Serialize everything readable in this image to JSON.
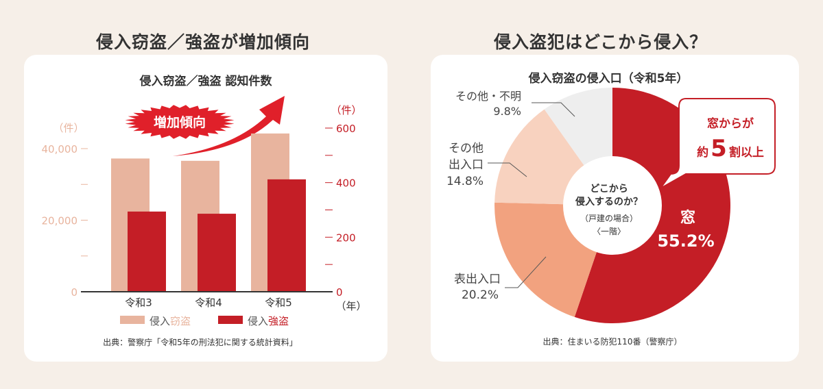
{
  "left": {
    "heading": "侵入窃盗／強盗が増加傾向",
    "source": "出典：警察庁「令和5年の刑法犯に関する統計資料」",
    "badge": "増加傾向"
  },
  "right": {
    "heading": "侵入盗犯はどこから侵入？",
    "source": "出典：住まいる防犯110番（警察庁）",
    "center": [
      "どこから",
      "侵入するのか？",
      "（戸建の場合）",
      "〈一階〉"
    ],
    "callout": {
      "line1": "窓からが",
      "pre": "約",
      "num": "5",
      "post": "割以上"
    }
  },
  "chart_data": [
    {
      "type": "bar",
      "title": "侵入窃盗／強盗 認知件数",
      "categories": [
        "令和3",
        "令和4",
        "令和5"
      ],
      "xlabel": "（年）",
      "ylabel_left": "（件）",
      "ylabel_right": "（件）",
      "ylim_left": [
        0,
        40000
      ],
      "yticks_left": [
        "0",
        "20,000",
        "40,000"
      ],
      "ylim_right": [
        0,
        600
      ],
      "yticks_right": [
        "0",
        "200",
        "400",
        "600"
      ],
      "series": [
        {
          "name": "侵入窃盗",
          "axis": "left",
          "color": "#e8b49e",
          "values": [
            37240,
            36588,
            44228
          ]
        },
        {
          "name": "侵入強盗",
          "axis": "right",
          "color": "#c41e26",
          "values": [
            294,
            286,
            412
          ]
        }
      ],
      "legend": [
        {
          "prefix": "侵入",
          "suffix": "窃盗"
        },
        {
          "prefix": "侵入",
          "suffix": "強盗"
        }
      ],
      "legend_position": "bottom"
    },
    {
      "type": "pie",
      "title": "侵入窃盗の侵入口（令和5年）",
      "slices": [
        {
          "label": "窓",
          "value": 55.2,
          "pct": "55.2%",
          "color": "#c41e26"
        },
        {
          "label": "表出入口",
          "value": 20.2,
          "pct": "20.2%",
          "color": "#f2a27f"
        },
        {
          "label": "その他出入口",
          "value": 14.8,
          "pct": "14.8%",
          "color": "#f8d2bf"
        },
        {
          "label": "その他・不明",
          "value": 9.8,
          "pct": "9.8%",
          "color": "#eeeeee"
        }
      ]
    }
  ]
}
